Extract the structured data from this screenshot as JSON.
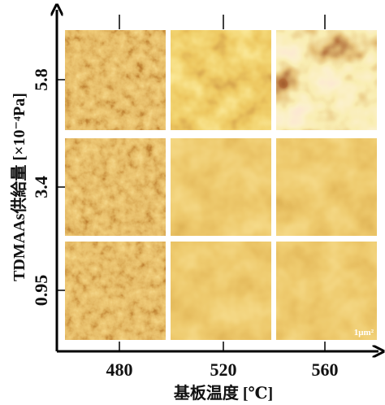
{
  "x_axis": {
    "title": "基板温度 [℃]",
    "categories": [
      "480",
      "520",
      "560"
    ]
  },
  "y_axis": {
    "title": "TDMAAs供給量 [×10⁻⁴Pa]",
    "categories": [
      "0.95",
      "3.4",
      "5.8"
    ]
  },
  "scale_label": "1μm²"
}
